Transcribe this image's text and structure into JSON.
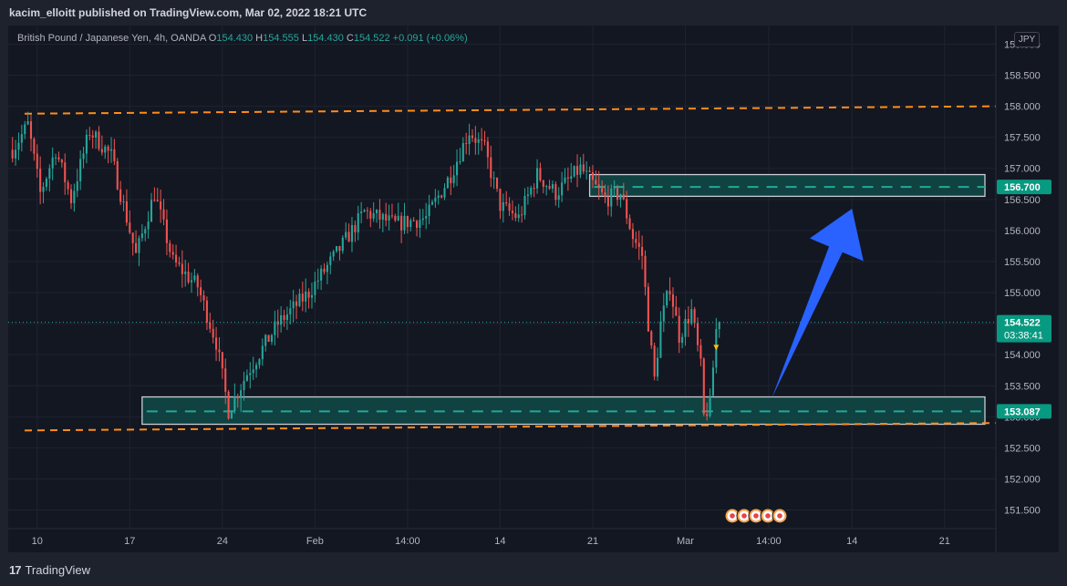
{
  "header": {
    "published_line": "kacim_elloitt published on TradingView.com, Mar 02, 2022 18:21 UTC"
  },
  "legend": {
    "symbol": "British Pound / Japanese Yen, 4h, OANDA",
    "o_key": "O",
    "o": "154.430",
    "h_key": "H",
    "h": "154.555",
    "l_key": "L",
    "l": "154.430",
    "c_key": "C",
    "c": "154.522",
    "change": "+0.091 (+0.06%)"
  },
  "currency_badge": "JPY",
  "footer": {
    "brand": "TradingView",
    "logo_mark": "17"
  },
  "colors": {
    "up": "#26a69a",
    "down": "#ef5350",
    "zone_fill": "#0f4a47",
    "zone_border": "#c8cdd6",
    "zone_line": "#26a69a",
    "orange_line": "#ff8c1a",
    "arrow": "#2962ff",
    "price_label": "#089981"
  },
  "chart_data": {
    "type": "candlestick",
    "y_axis": {
      "ylim": [
        151.2,
        159.3
      ],
      "ticks": [
        "151.500",
        "152.000",
        "152.500",
        "153.000",
        "153.500",
        "154.000",
        "154.500",
        "155.000",
        "155.500",
        "156.000",
        "156.500",
        "157.000",
        "157.500",
        "158.000",
        "158.500",
        "159.000"
      ],
      "tick_values": [
        151.5,
        152.0,
        152.5,
        153.0,
        153.5,
        154.0,
        154.5,
        155.0,
        155.5,
        156.0,
        156.5,
        157.0,
        157.5,
        158.0,
        158.5,
        159.0
      ],
      "top_partial_label": "159.000"
    },
    "x_axis": {
      "ticks": [
        {
          "label": "10",
          "bar": 8
        },
        {
          "label": "17",
          "bar": 38
        },
        {
          "label": "24",
          "bar": 68
        },
        {
          "label": "Feb",
          "bar": 98
        },
        {
          "label": "14:00",
          "bar": 128
        },
        {
          "label": "14",
          "bar": 158
        },
        {
          "label": "21",
          "bar": 188
        },
        {
          "label": "Mar",
          "bar": 218
        },
        {
          "label": "14:00",
          "bar": 245
        },
        {
          "label": "14",
          "bar": 272
        },
        {
          "label": "21",
          "bar": 302
        }
      ],
      "total_slots": 320
    },
    "price_path": [
      [
        0,
        157.3
      ],
      [
        5,
        157.7
      ],
      [
        9,
        156.6
      ],
      [
        14,
        157.3
      ],
      [
        19,
        156.5
      ],
      [
        25,
        157.6
      ],
      [
        32,
        157.2
      ],
      [
        40,
        155.6
      ],
      [
        46,
        156.6
      ],
      [
        52,
        155.5
      ],
      [
        60,
        155.1
      ],
      [
        66,
        154.2
      ],
      [
        70,
        153.1
      ],
      [
        76,
        153.7
      ],
      [
        86,
        154.5
      ],
      [
        96,
        155.0
      ],
      [
        106,
        155.7
      ],
      [
        114,
        156.3
      ],
      [
        124,
        156.1
      ],
      [
        134,
        156.2
      ],
      [
        142,
        156.9
      ],
      [
        148,
        157.6
      ],
      [
        153,
        157.3
      ],
      [
        158,
        156.4
      ],
      [
        164,
        156.2
      ],
      [
        170,
        156.9
      ],
      [
        176,
        156.6
      ],
      [
        184,
        157.0
      ],
      [
        192,
        156.5
      ],
      [
        197,
        156.6
      ],
      [
        201,
        155.9
      ],
      [
        204,
        155.6
      ],
      [
        206,
        154.5
      ],
      [
        208,
        153.6
      ],
      [
        210,
        154.5
      ],
      [
        213,
        155.1
      ],
      [
        216,
        154.3
      ],
      [
        220,
        154.7
      ],
      [
        223,
        153.8
      ],
      [
        224,
        153.0
      ],
      [
        226,
        153.2
      ],
      [
        228,
        154.4
      ],
      [
        229,
        154.522
      ]
    ],
    "current_price": "154.522",
    "countdown": "03:38:41",
    "zones": [
      {
        "label": "156.700",
        "low": 156.55,
        "high": 156.9,
        "mid": 156.7,
        "bar_start": 187,
        "bar_end": 320
      },
      {
        "label": "153.087",
        "low": 152.88,
        "high": 153.32,
        "mid": 153.087,
        "bar_start": 42,
        "bar_end": 320
      }
    ],
    "resistance_line": {
      "price_start": 157.88,
      "price_end": 158.0
    },
    "support_line": {
      "price_start": 152.78,
      "price_end": 152.9
    },
    "arrow": {
      "from_bar": 246,
      "from_price": 153.3,
      "to_bar": 272,
      "to_price": 156.35
    },
    "event_markers": 5,
    "grid": true,
    "legend_position": "top-left"
  }
}
